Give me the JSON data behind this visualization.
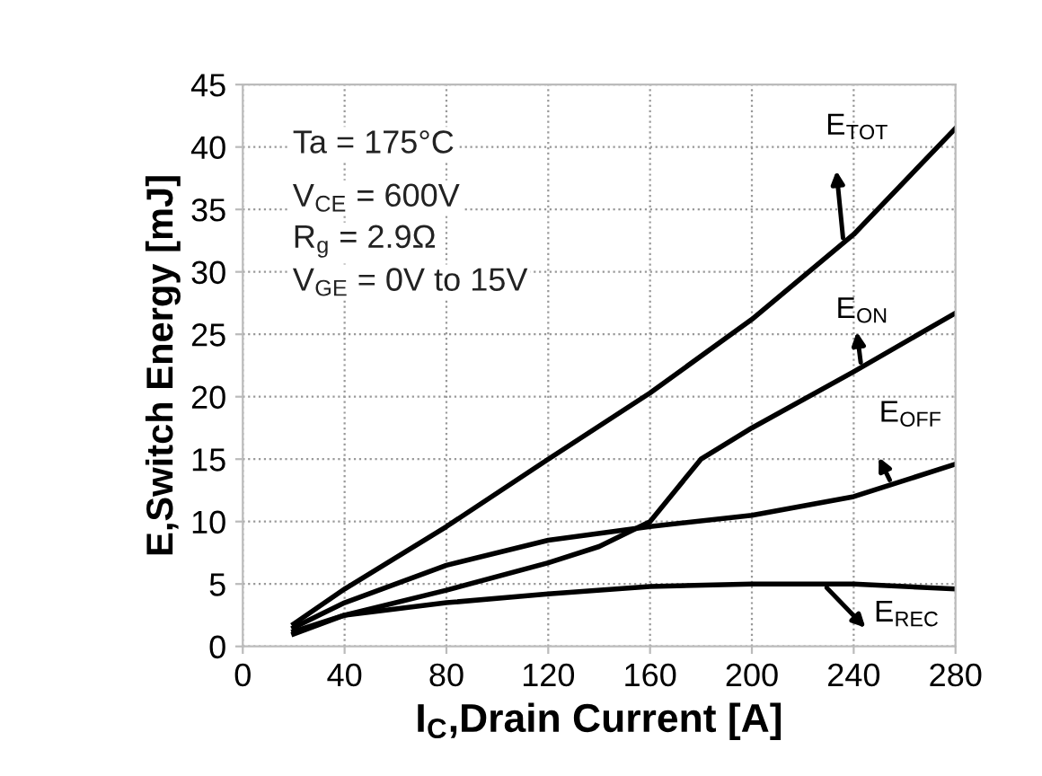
{
  "chart_data": {
    "type": "line",
    "xlabel": "I$_{C}$,Drain Current [A]",
    "ylabel": "E,Switch Energy [mJ]",
    "xlim": [
      0,
      280
    ],
    "xticks": [
      0,
      40,
      80,
      120,
      160,
      200,
      240,
      280
    ],
    "ylim": [
      0,
      45
    ],
    "yticks": [
      0,
      5,
      10,
      15,
      20,
      25,
      30,
      35,
      40,
      45
    ],
    "grid": true,
    "line_style": "solid",
    "annotations": [
      "Ta = 175°C",
      "V$_{CE}$ = 600V",
      "R$_{g}$ = 2.9Ω",
      "V$_{GE}$ = 0V to 15V"
    ],
    "series": [
      {
        "name": "E$_{TOT}$",
        "color": "#000000",
        "x": [
          20,
          40,
          80,
          120,
          160,
          200,
          240,
          280
        ],
        "values": [
          1.8,
          4.6,
          9.6,
          15,
          20.3,
          26.2,
          33,
          41.5
        ]
      },
      {
        "name": "E$_{ON}$",
        "color": "#000000",
        "x": [
          20,
          40,
          80,
          120,
          140,
          160,
          170,
          180,
          200,
          240,
          280
        ],
        "values": [
          1.0,
          2.5,
          4.5,
          6.7,
          8,
          10,
          12.5,
          15,
          17.5,
          22,
          26.7
        ]
      },
      {
        "name": "E$_{OFF}$",
        "color": "#000000",
        "x": [
          20,
          40,
          80,
          120,
          160,
          200,
          240,
          280
        ],
        "values": [
          1.5,
          3.5,
          6.5,
          8.5,
          9.6,
          10.5,
          12,
          14.6
        ]
      },
      {
        "name": "E$_{REC}$",
        "color": "#000000",
        "x": [
          20,
          40,
          80,
          120,
          160,
          200,
          240,
          280
        ],
        "values": [
          1.2,
          2.5,
          3.5,
          4.2,
          4.8,
          5,
          5,
          4.6
        ]
      }
    ]
  }
}
